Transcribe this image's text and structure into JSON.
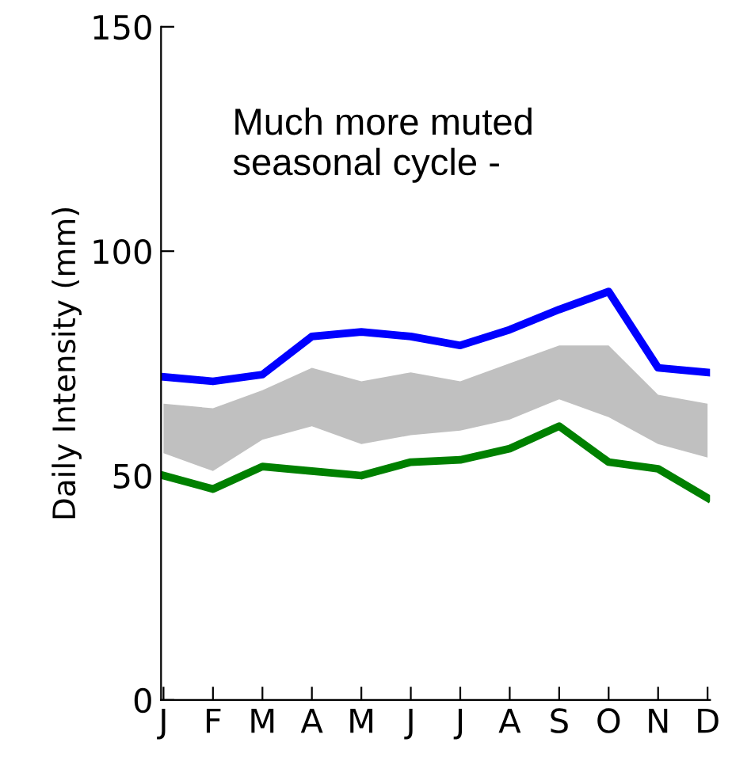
{
  "chart_data": {
    "type": "line",
    "ylabel": "Daily Intensity (mm)",
    "categories": [
      "J",
      "F",
      "M",
      "A",
      "M",
      "J",
      "J",
      "A",
      "S",
      "O",
      "N",
      "D"
    ],
    "series": [
      {
        "color": "#c0c0c0",
        "type": "area",
        "values": [
          null,
          null,
          null,
          null,
          null,
          null,
          null,
          null,
          null,
          null,
          null,
          null
        ],
        "lower": [
          55,
          51,
          58,
          61,
          57,
          59,
          60,
          62.5,
          67,
          63,
          57,
          54
        ],
        "upper": [
          66,
          65,
          69,
          74,
          71,
          73,
          71,
          75,
          79,
          79,
          68,
          66
        ]
      },
      {
        "color": "#0000ff",
        "values": [
          72,
          71,
          72.5,
          81,
          82,
          81,
          79,
          82.5,
          87,
          91,
          74,
          73
        ]
      },
      {
        "color": "#008000",
        "values": [
          50,
          47,
          52,
          51,
          50,
          53,
          53.5,
          56,
          61,
          53,
          51.5,
          45
        ]
      }
    ],
    "ylim": [
      0,
      150
    ],
    "yticks": [
      0,
      50,
      100,
      150
    ],
    "grid": false,
    "annotations": [
      "Much more muted\nseasonal cycle -"
    ]
  }
}
